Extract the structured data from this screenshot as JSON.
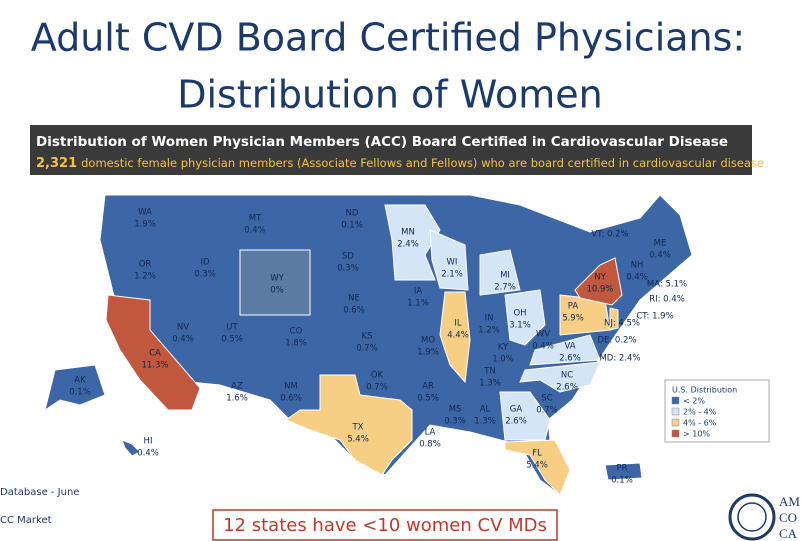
{
  "header": {
    "title_line1": "Adult CVD Board Certified Physicians:",
    "title_line2": "Distribution of Women"
  },
  "banner": {
    "title": "Distribution of Women Physician Members (ACC) Board Certified in Cardiovascular Disease",
    "count": "2,321",
    "subtitle": "domestic female physician members (Associate Fellows and Fellows) who are board certified in cardiovascular disease"
  },
  "states": [
    {
      "label": "WA",
      "value": "1.9%"
    },
    {
      "label": "OR",
      "value": "1.2%"
    },
    {
      "label": "ID",
      "value": "0.3%"
    },
    {
      "label": "MT",
      "value": "0.4%"
    },
    {
      "label": "WY",
      "value": "0%"
    },
    {
      "label": "NV",
      "value": "0.4%"
    },
    {
      "label": "UT",
      "value": "0.5%"
    },
    {
      "label": "CO",
      "value": "1.8%"
    },
    {
      "label": "CA",
      "value": "11.3%"
    },
    {
      "label": "AZ",
      "value": "1.6%"
    },
    {
      "label": "NM",
      "value": "0.6%"
    },
    {
      "label": "ND",
      "value": "0.1%"
    },
    {
      "label": "SD",
      "value": "0.3%"
    },
    {
      "label": "NE",
      "value": "0.6%"
    },
    {
      "label": "KS",
      "value": "0.7%"
    },
    {
      "label": "OK",
      "value": "0.7%"
    },
    {
      "label": "TX",
      "value": "5.4%"
    },
    {
      "label": "MN",
      "value": "2.4%"
    },
    {
      "label": "IA",
      "value": "1.1%"
    },
    {
      "label": "MO",
      "value": "1.9%"
    },
    {
      "label": "AR",
      "value": "0.5%"
    },
    {
      "label": "LA",
      "value": "0.8%"
    },
    {
      "label": "WI",
      "value": "2.1%"
    },
    {
      "label": "IL",
      "value": "4.4%"
    },
    {
      "label": "MI",
      "value": "2.7%"
    },
    {
      "label": "IN",
      "value": "1.2%"
    },
    {
      "label": "OH",
      "value": "3.1%"
    },
    {
      "label": "KY",
      "value": "1.0%"
    },
    {
      "label": "TN",
      "value": "1.3%"
    },
    {
      "label": "MS",
      "value": "0.3%"
    },
    {
      "label": "AL",
      "value": "1.3%"
    },
    {
      "label": "GA",
      "value": "2.6%"
    },
    {
      "label": "FL",
      "value": "5.4%"
    },
    {
      "label": "SC",
      "value": "0.7%"
    },
    {
      "label": "NC",
      "value": "2.6%"
    },
    {
      "label": "VA",
      "value": "2.6%"
    },
    {
      "label": "WV",
      "value": "0.4%"
    },
    {
      "label": "PA",
      "value": "5.9%"
    },
    {
      "label": "NY",
      "value": "10.9%"
    },
    {
      "label": "NH",
      "value": "0.4%"
    },
    {
      "label": "ME",
      "value": "0.4%"
    },
    {
      "label": "AK",
      "value": "0.1%"
    },
    {
      "label": "HI",
      "value": "0.4%"
    },
    {
      "label": "PR",
      "value": "0.1%"
    },
    {
      "label": "VT: 0.2%"
    },
    {
      "label": "MA: 5.1%"
    },
    {
      "label": "RI: 0.4%"
    },
    {
      "label": "CT: 1.9%"
    },
    {
      "label": "NJ: 4.5%"
    },
    {
      "label": "DE: 0.2%"
    },
    {
      "label": "MD: 2.4%"
    }
  ],
  "legend": {
    "title": "U.S. Distribution",
    "items": [
      {
        "label": "< 2%",
        "color": "#3d66a6"
      },
      {
        "label": "2% - 4%",
        "color": "#d4e5f6"
      },
      {
        "label": "4% - 6%",
        "color": "#f7cf84"
      },
      {
        "label": "> 10%",
        "color": "#c1573d"
      }
    ]
  },
  "footer": {
    "source_line1": "Database  - June",
    "source_line2": "CC Market",
    "callout": "12 states have <10 women CV MDs"
  },
  "logo": {
    "line1": "AM",
    "line2": "CO",
    "line3": "CA"
  }
}
